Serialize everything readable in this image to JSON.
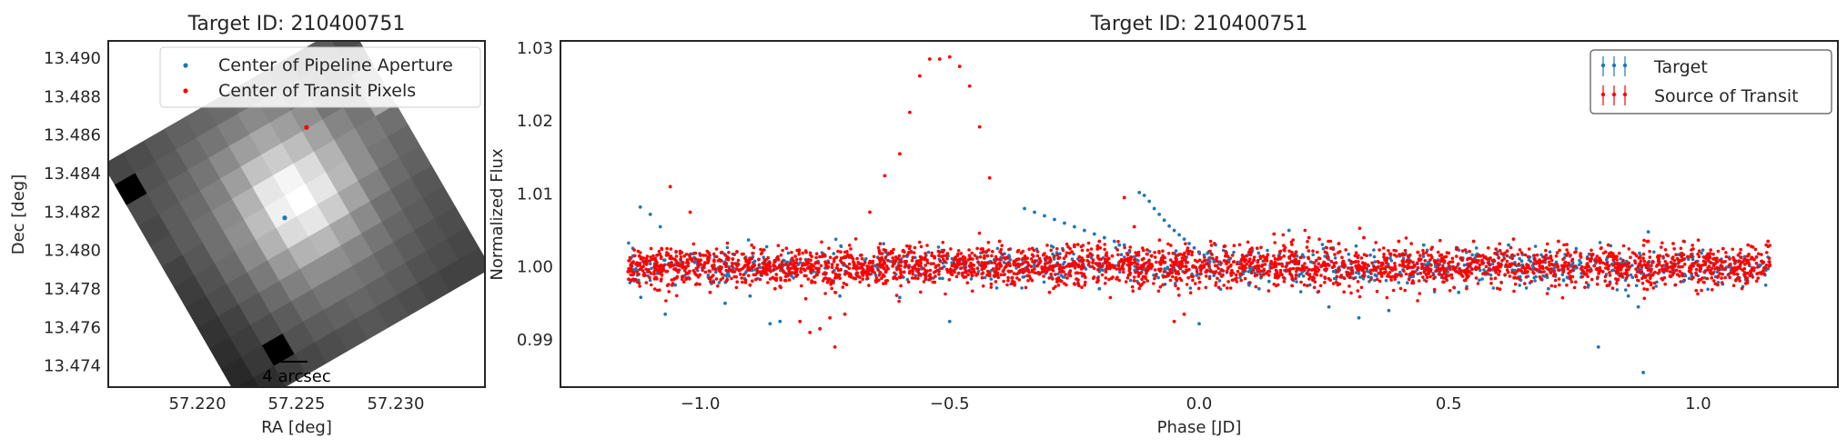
{
  "chart_data": [
    {
      "type": "heatmap",
      "title": "Target ID: 210400751",
      "xlabel": "RA [deg]",
      "ylabel": "Dec [deg]",
      "xlim": [
        57.2155,
        57.2345
      ],
      "ylim": [
        13.4729,
        13.4909
      ],
      "xticks": [
        "57.220",
        "57.225",
        "57.230"
      ],
      "yticks": [
        "13.474",
        "13.476",
        "13.478",
        "13.480",
        "13.482",
        "13.484",
        "13.486",
        "13.488",
        "13.490"
      ],
      "image": {
        "colormap": "gray",
        "description_values": "pixel brightness 0-1",
        "pixels": [
          [
            0.28,
            0.3,
            0.34,
            0.38,
            0.4,
            0.42,
            0.44,
            0.44,
            0.4,
            0.32,
            0.36,
            0.3
          ],
          [
            0.0,
            0.32,
            0.36,
            0.42,
            0.46,
            0.5,
            0.54,
            0.52,
            0.48,
            0.4,
            0.38,
            0.34
          ],
          [
            0.3,
            0.34,
            0.4,
            0.46,
            0.54,
            0.62,
            0.66,
            0.62,
            0.56,
            0.46,
            0.42,
            0.6
          ],
          [
            0.28,
            0.36,
            0.42,
            0.5,
            0.62,
            0.76,
            0.8,
            0.74,
            0.64,
            0.52,
            0.46,
            0.66
          ],
          [
            0.3,
            0.36,
            0.44,
            0.54,
            0.7,
            0.9,
            0.96,
            0.86,
            0.7,
            0.56,
            0.48,
            0.44
          ],
          [
            0.26,
            0.34,
            0.44,
            0.56,
            0.74,
            0.94,
            1.0,
            0.9,
            0.72,
            0.56,
            0.46,
            0.4
          ],
          [
            0.24,
            0.32,
            0.42,
            0.54,
            0.7,
            0.86,
            0.9,
            0.8,
            0.64,
            0.5,
            0.42,
            0.38
          ],
          [
            0.22,
            0.3,
            0.38,
            0.48,
            0.6,
            0.7,
            0.72,
            0.64,
            0.54,
            0.44,
            0.38,
            0.34
          ],
          [
            0.2,
            0.26,
            0.34,
            0.42,
            0.5,
            0.56,
            0.56,
            0.52,
            0.46,
            0.4,
            0.36,
            0.32
          ],
          [
            0.18,
            0.24,
            0.3,
            0.36,
            0.42,
            0.46,
            0.46,
            0.44,
            0.4,
            0.36,
            0.32,
            0.3
          ],
          [
            0.16,
            0.22,
            0.0,
            0.32,
            0.36,
            0.38,
            0.4,
            0.38,
            0.36,
            0.32,
            0.3,
            0.28
          ],
          [
            0.14,
            0.18,
            0.24,
            0.28,
            0.3,
            0.32,
            0.34,
            0.32,
            0.3,
            0.28,
            0.26,
            0.26
          ]
        ]
      },
      "series": [
        {
          "name": "Center of Pipeline Aperture",
          "color": "#1f77b4",
          "x": [
            57.2244
          ],
          "y": [
            13.4817
          ]
        },
        {
          "name": "Center of Transit Pixels",
          "color": "#ff0000",
          "x": [
            57.2255
          ],
          "y": [
            13.4864
          ]
        }
      ],
      "scalebar_label": "4 arcsec",
      "legend_position": "top-right",
      "grid": false
    },
    {
      "type": "scatter",
      "title": "Target ID: 210400751",
      "xlabel": "Phase [JD]",
      "ylabel": "Normalized Flux",
      "xlim": [
        -1.28,
        1.28
      ],
      "ylim": [
        0.9835,
        1.031
      ],
      "xticks": [
        {
          "v": -1.0,
          "label": "−1.0"
        },
        {
          "v": -0.5,
          "label": "−0.5"
        },
        {
          "v": 0.0,
          "label": "0.0"
        },
        {
          "v": 0.5,
          "label": "0.5"
        },
        {
          "v": 1.0,
          "label": "1.0"
        }
      ],
      "yticks": [
        {
          "v": 0.99,
          "label": "0.99"
        },
        {
          "v": 1.0,
          "label": "1.00"
        },
        {
          "v": 1.01,
          "label": "1.01"
        },
        {
          "v": 1.02,
          "label": "1.02"
        },
        {
          "v": 1.03,
          "label": "1.03"
        }
      ],
      "legend_position": "top-right",
      "grid": false,
      "series": [
        {
          "name": "Target",
          "color": "#1f77b4",
          "x": [
            -1.12,
            -1.1,
            -1.08,
            -1.07,
            -1.05,
            -0.95,
            -0.9,
            -0.84,
            -0.72,
            -0.5,
            -0.35,
            -0.33,
            -0.31,
            -0.29,
            -0.27,
            -0.25,
            -0.23,
            -0.21,
            -0.19,
            -0.17,
            -0.15,
            -0.12,
            -0.11,
            -0.1,
            -0.09,
            -0.08,
            -0.07,
            -0.06,
            -0.05,
            -0.04,
            -0.03,
            -0.02,
            -0.01,
            0.0,
            0.01,
            0.02,
            0.03,
            0.04,
            0.06,
            0.08,
            0.1,
            0.18,
            0.26,
            0.32,
            0.38,
            0.45,
            0.52,
            0.62,
            0.7,
            0.78,
            0.8,
            0.86,
            0.88,
            0.89,
            0.9,
            0.97,
            -0.86,
            -0.6,
            -0.2,
            0.0,
            -0.16,
            -0.14,
            0.12,
            0.14
          ],
          "y": [
            1.0082,
            1.0072,
            1.0055,
            0.9935,
            0.9975,
            0.995,
            0.996,
            0.9925,
            0.996,
            0.9925,
            1.008,
            1.0075,
            1.007,
            1.0065,
            1.006,
            1.0055,
            1.005,
            1.0045,
            1.004,
            1.0035,
            1.003,
            1.0102,
            1.0098,
            1.009,
            1.008,
            1.0072,
            1.0064,
            1.0056,
            1.005,
            1.0044,
            1.0038,
            1.0032,
            1.0026,
            1.002,
            1.0016,
            1.0012,
            1.0008,
            1.0004,
            1.001,
            1.0006,
            0.9975,
            1.005,
            0.9945,
            0.993,
            0.994,
            1.003,
            0.9965,
            1.003,
            0.997,
            0.9975,
            0.989,
            0.996,
            0.9945,
            0.9855,
            1.0048,
            0.998,
            0.9922,
            0.9958,
            0.997,
            0.9922,
            1.003,
            1.002,
            0.997,
            0.998
          ],
          "note_dense_band": "plus ~1000 points scattered around 1.000 with spread ~0.002 across full phase range"
        },
        {
          "name": "Source of Transit",
          "color": "#ff0000",
          "x": [
            -1.06,
            -1.02,
            -0.98,
            -0.9,
            -0.85,
            -0.8,
            -0.78,
            -0.76,
            -0.74,
            -0.73,
            -0.71,
            -0.66,
            -0.63,
            -0.6,
            -0.58,
            -0.56,
            -0.54,
            -0.52,
            -0.5,
            -0.48,
            -0.46,
            -0.44,
            -0.42,
            -0.4,
            -0.37,
            -0.3,
            -0.25,
            -0.2,
            -0.15,
            -0.13,
            -0.05,
            -0.03,
            0.05,
            0.1,
            0.15,
            0.22,
            0.28,
            0.33,
            0.4,
            0.55,
            0.63,
            0.72,
            0.82,
            0.9,
            0.95,
            1.05,
            1.1,
            1.14
          ],
          "y": [
            1.011,
            1.0075,
            0.9965,
            0.9975,
            0.997,
            0.9925,
            0.991,
            0.9915,
            0.993,
            0.989,
            0.9935,
            1.0075,
            1.0125,
            1.0155,
            1.0212,
            1.0262,
            1.0285,
            1.0285,
            1.0288,
            1.0275,
            1.0248,
            1.0192,
            1.0122,
            1.0035,
            0.9975,
            0.9965,
            1.003,
            1.0035,
            1.0095,
            1.0055,
            0.9925,
            0.9935,
            1.0028,
            1.002,
            1.0045,
            1.004,
            1.0032,
            1.004,
            1.0035,
            1.0035,
            1.0038,
            1.0035,
            1.003,
            1.0035,
            1.0032,
            1.0025,
            1.003,
            1.0035
          ],
          "note_dense_band": "plus ~3000 points scattered around 1.000 with spread ~0.002 across full phase range"
        }
      ]
    }
  ]
}
